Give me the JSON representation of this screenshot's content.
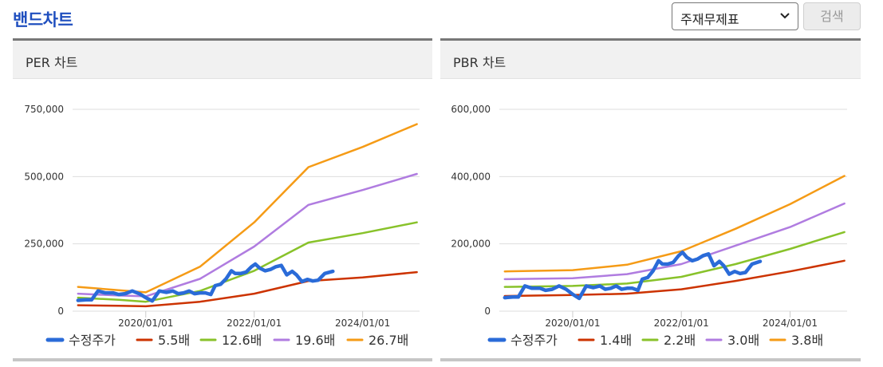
{
  "header": {
    "title": "밴드차트",
    "select_value": "주재무제표",
    "search_label": "검색"
  },
  "colors": {
    "accent": "#1f4fbf",
    "price": "#2a6bd8",
    "band1": "#cc3300",
    "band2": "#88c22a",
    "band3": "#b07ce0",
    "band4": "#f59b16",
    "grid": "#dddddd"
  },
  "chart_data": [
    {
      "type": "line",
      "title": "PER 차트",
      "x_ticks": [
        "2020/01/01",
        "2022/01/01",
        "2024/01/01"
      ],
      "x_tick_values": [
        2020.0,
        2022.0,
        2024.0
      ],
      "xlim": [
        2018.65,
        2025.05
      ],
      "y_ticks": [
        0,
        250000,
        500000,
        750000
      ],
      "y_tick_labels": [
        "0",
        "250,000",
        "500,000",
        "750,000"
      ],
      "ylim": [
        0,
        750000
      ],
      "grid": true,
      "legend": "bottom",
      "series": [
        {
          "name": "수정주가",
          "color": "#2a6bd8",
          "width": 4.5,
          "x": [
            2018.75,
            2018.9,
            2019.0,
            2019.12,
            2019.25,
            2019.4,
            2019.5,
            2019.62,
            2019.75,
            2019.88,
            2020.0,
            2020.12,
            2020.25,
            2020.38,
            2020.5,
            2020.6,
            2020.7,
            2020.8,
            2020.9,
            2021.0,
            2021.1,
            2021.2,
            2021.28,
            2021.38,
            2021.48,
            2021.58,
            2021.65,
            2021.75,
            2021.85,
            2021.95,
            2022.02,
            2022.1,
            2022.2,
            2022.3,
            2022.4,
            2022.5,
            2022.6,
            2022.7,
            2022.78,
            2022.88,
            2022.98,
            2023.08,
            2023.18,
            2023.3,
            2023.45
          ],
          "values": [
            40000,
            42000,
            42000,
            75000,
            68000,
            68000,
            62000,
            65000,
            75000,
            65000,
            50000,
            38000,
            75000,
            70000,
            75000,
            65000,
            68000,
            75000,
            65000,
            68000,
            68000,
            62000,
            95000,
            100000,
            120000,
            150000,
            140000,
            140000,
            145000,
            165000,
            175000,
            160000,
            150000,
            155000,
            165000,
            170000,
            135000,
            148000,
            135000,
            110000,
            118000,
            112000,
            115000,
            140000,
            148000
          ]
        },
        {
          "name": "5.5배",
          "color": "#cc3300",
          "width": 2.5,
          "x": [
            2018.75,
            2019.5,
            2020.0,
            2021.0,
            2022.0,
            2023.0,
            2024.0,
            2025.0
          ],
          "values": [
            22000,
            20000,
            18000,
            35000,
            65000,
            112000,
            125000,
            145000
          ]
        },
        {
          "name": "12.6배",
          "color": "#88c22a",
          "width": 2.5,
          "x": [
            2018.75,
            2019.5,
            2020.0,
            2021.0,
            2022.0,
            2023.0,
            2024.0,
            2025.0
          ],
          "values": [
            50000,
            42000,
            35000,
            75000,
            150000,
            255000,
            290000,
            330000
          ]
        },
        {
          "name": "19.6배",
          "color": "#b07ce0",
          "width": 2.5,
          "x": [
            2018.75,
            2019.5,
            2020.0,
            2021.0,
            2022.0,
            2023.0,
            2024.0,
            2025.0
          ],
          "values": [
            65000,
            58000,
            55000,
            120000,
            240000,
            395000,
            450000,
            510000
          ]
        },
        {
          "name": "26.7배",
          "color": "#f59b16",
          "width": 2.5,
          "x": [
            2018.75,
            2019.5,
            2020.0,
            2021.0,
            2022.0,
            2023.0,
            2024.0,
            2025.0
          ],
          "values": [
            90000,
            78000,
            70000,
            165000,
            330000,
            535000,
            610000,
            695000
          ]
        }
      ]
    },
    {
      "type": "line",
      "title": "PBR 차트",
      "x_ticks": [
        "2020/01/01",
        "2022/01/01",
        "2024/01/01"
      ],
      "x_tick_values": [
        2020.0,
        2022.0,
        2024.0
      ],
      "xlim": [
        2018.65,
        2025.05
      ],
      "y_ticks": [
        0,
        200000,
        400000,
        600000
      ],
      "y_tick_labels": [
        "0",
        "200,000",
        "400,000",
        "600,000"
      ],
      "ylim": [
        0,
        600000
      ],
      "grid": true,
      "legend": "bottom",
      "series": [
        {
          "name": "수정주가",
          "color": "#2a6bd8",
          "width": 4.5,
          "x": [
            2018.75,
            2018.9,
            2019.0,
            2019.12,
            2019.25,
            2019.4,
            2019.5,
            2019.62,
            2019.75,
            2019.88,
            2020.0,
            2020.12,
            2020.25,
            2020.38,
            2020.5,
            2020.6,
            2020.7,
            2020.8,
            2020.9,
            2021.0,
            2021.1,
            2021.2,
            2021.28,
            2021.38,
            2021.48,
            2021.58,
            2021.65,
            2021.75,
            2021.85,
            2021.95,
            2022.02,
            2022.1,
            2022.2,
            2022.3,
            2022.4,
            2022.5,
            2022.6,
            2022.7,
            2022.78,
            2022.88,
            2022.98,
            2023.08,
            2023.18,
            2023.3,
            2023.45
          ],
          "values": [
            40000,
            42000,
            42000,
            75000,
            68000,
            68000,
            62000,
            65000,
            75000,
            65000,
            50000,
            38000,
            75000,
            70000,
            75000,
            65000,
            68000,
            75000,
            65000,
            68000,
            68000,
            62000,
            95000,
            100000,
            120000,
            150000,
            140000,
            140000,
            145000,
            165000,
            175000,
            160000,
            150000,
            155000,
            165000,
            170000,
            135000,
            148000,
            135000,
            110000,
            118000,
            112000,
            115000,
            140000,
            148000
          ]
        },
        {
          "name": "1.4배",
          "color": "#cc3300",
          "width": 2.5,
          "x": [
            2018.75,
            2020.0,
            2021.0,
            2022.0,
            2023.0,
            2024.0,
            2025.0
          ],
          "values": [
            45000,
            48000,
            52000,
            65000,
            90000,
            118000,
            150000
          ]
        },
        {
          "name": "2.2배",
          "color": "#88c22a",
          "width": 2.5,
          "x": [
            2018.75,
            2020.0,
            2021.0,
            2022.0,
            2023.0,
            2024.0,
            2025.0
          ],
          "values": [
            72000,
            75000,
            82000,
            102000,
            140000,
            185000,
            235000
          ]
        },
        {
          "name": "3.0배",
          "color": "#b07ce0",
          "width": 2.5,
          "x": [
            2018.75,
            2020.0,
            2021.0,
            2022.0,
            2023.0,
            2024.0,
            2025.0
          ],
          "values": [
            95000,
            98000,
            110000,
            140000,
            195000,
            250000,
            320000
          ]
        },
        {
          "name": "3.8배",
          "color": "#f59b16",
          "width": 2.5,
          "x": [
            2018.75,
            2020.0,
            2021.0,
            2022.0,
            2023.0,
            2024.0,
            2025.0
          ],
          "values": [
            118000,
            122000,
            138000,
            178000,
            245000,
            318000,
            402000
          ]
        }
      ]
    }
  ]
}
